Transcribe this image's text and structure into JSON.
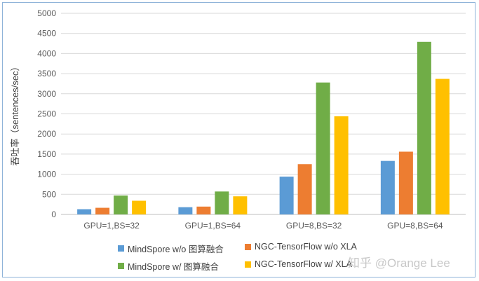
{
  "chart_data": {
    "type": "bar",
    "title": "",
    "xlabel": "",
    "ylabel": "吞吐率（sentences/sec）",
    "ylim": [
      0,
      5000
    ],
    "yticks": [
      0,
      500,
      1000,
      1500,
      2000,
      2500,
      3000,
      3500,
      4000,
      4500,
      5000
    ],
    "grid": true,
    "legend_position": "bottom",
    "categories": [
      "GPU=1,BS=32",
      "GPU=1,BS=64",
      "GPU=8,BS=32",
      "GPU=8,BS=64"
    ],
    "series": [
      {
        "name": "MindSpore w/o 图算融合",
        "color": "#5b9bd5",
        "values": [
          130,
          180,
          940,
          1330
        ]
      },
      {
        "name": "NGC-TensorFlow w/o XLA",
        "color": "#ed7d31",
        "values": [
          165,
          195,
          1250,
          1560
        ]
      },
      {
        "name": "MindSpore w/ 图算融合",
        "color": "#70ad47",
        "values": [
          470,
          570,
          3280,
          4290
        ]
      },
      {
        "name": "NGC-TensorFlow w/ XLA",
        "color": "#ffc000",
        "values": [
          340,
          450,
          2440,
          3370
        ]
      }
    ]
  },
  "watermark": "知乎 @Orange Lee"
}
